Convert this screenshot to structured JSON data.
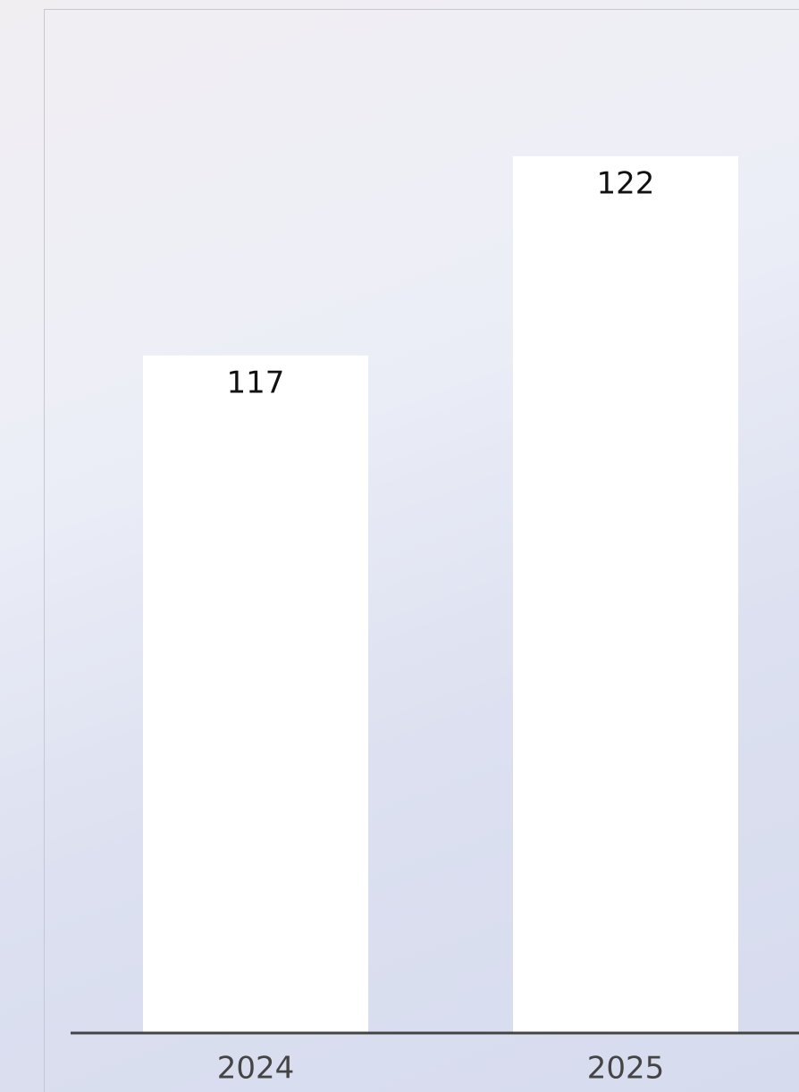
{
  "chart_data": {
    "type": "bar",
    "categories": [
      "2024",
      "2025"
    ],
    "values": [
      117,
      122
    ],
    "color": "#ffffff",
    "ylim": [
      100,
      125
    ]
  }
}
